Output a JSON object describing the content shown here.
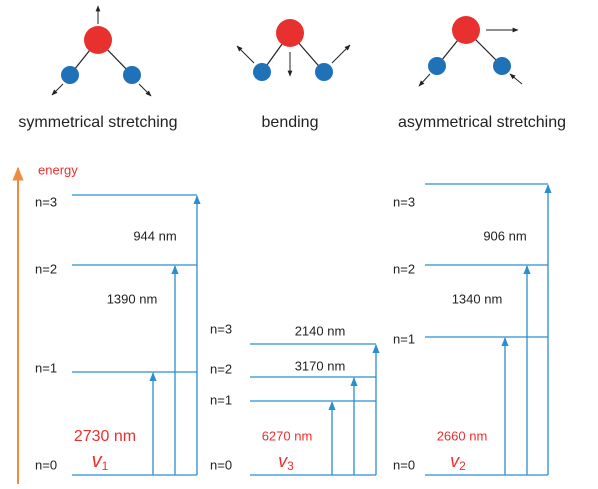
{
  "modes": [
    {
      "label": "symmetrical stretching"
    },
    {
      "label": "bending"
    },
    {
      "label": "asymmetrical stretching"
    }
  ],
  "energy_axis": "energy",
  "diagrams": [
    {
      "levels": [
        "n=0",
        "n=1",
        "n=2",
        "n=3"
      ],
      "transitions": [
        "2730 nm",
        "1390 nm",
        "944 nm"
      ],
      "symbol": "v",
      "subscript": "1"
    },
    {
      "levels": [
        "n=0",
        "n=1",
        "n=2",
        "n=3"
      ],
      "transitions": [
        "6270 nm",
        "3170 nm",
        "2140 nm"
      ],
      "symbol": "v",
      "subscript": "3"
    },
    {
      "levels": [
        "n=0",
        "n=1",
        "n=2",
        "n=3"
      ],
      "transitions": [
        "2660 nm",
        "1340 nm",
        "906 nm"
      ],
      "symbol": "v",
      "subscript": "2"
    }
  ]
}
